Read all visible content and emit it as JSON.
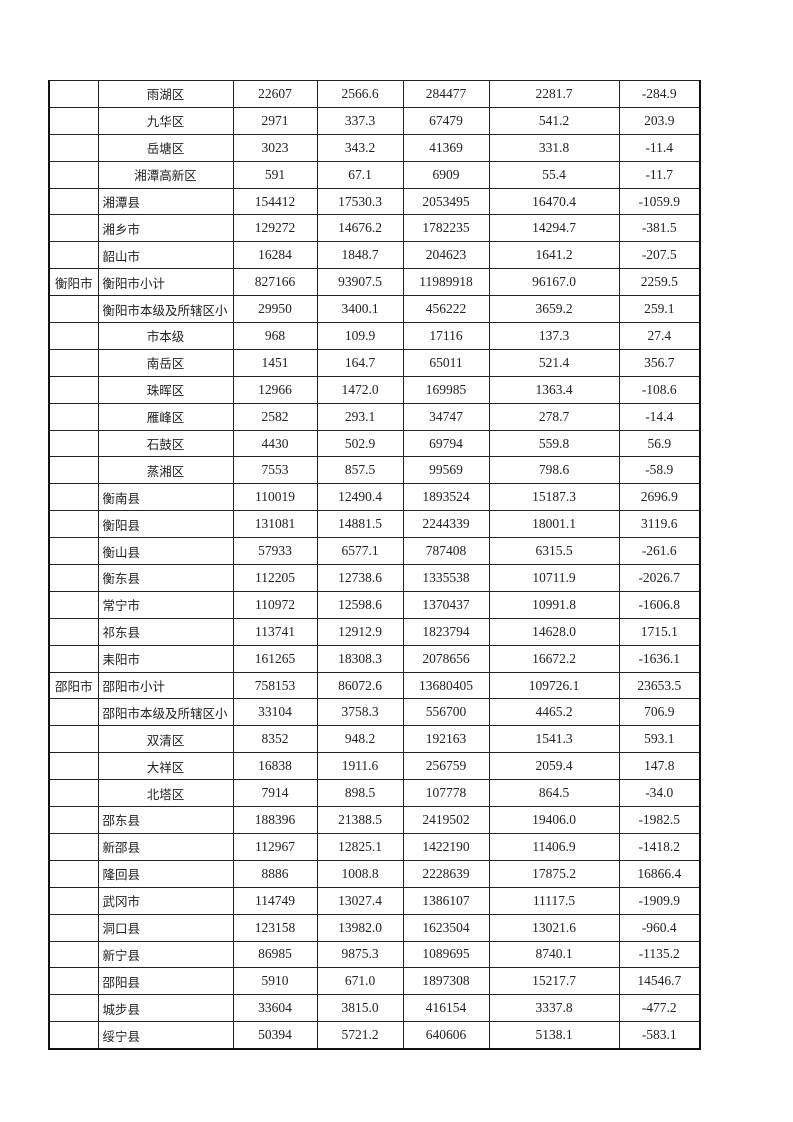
{
  "rows": [
    {
      "city": "",
      "name": "雨湖区",
      "sub": true,
      "v": [
        "22607",
        "2566.6",
        "284477",
        "2281.7",
        "-284.9"
      ]
    },
    {
      "city": "",
      "name": "九华区",
      "sub": true,
      "v": [
        "2971",
        "337.3",
        "67479",
        "541.2",
        "203.9"
      ]
    },
    {
      "city": "",
      "name": "岳塘区",
      "sub": true,
      "v": [
        "3023",
        "343.2",
        "41369",
        "331.8",
        "-11.4"
      ]
    },
    {
      "city": "",
      "name": "湘潭高新区",
      "sub": true,
      "v": [
        "591",
        "67.1",
        "6909",
        "55.4",
        "-11.7"
      ]
    },
    {
      "city": "",
      "name": "湘潭县",
      "sub": false,
      "v": [
        "154412",
        "17530.3",
        "2053495",
        "16470.4",
        "-1059.9"
      ]
    },
    {
      "city": "",
      "name": "湘乡市",
      "sub": false,
      "v": [
        "129272",
        "14676.2",
        "1782235",
        "14294.7",
        "-381.5"
      ]
    },
    {
      "city": "",
      "name": "韶山市",
      "sub": false,
      "v": [
        "16284",
        "1848.7",
        "204623",
        "1641.2",
        "-207.5"
      ]
    },
    {
      "city": "衡阳市",
      "name": "衡阳市小计",
      "sub": false,
      "v": [
        "827166",
        "93907.5",
        "11989918",
        "96167.0",
        "2259.5"
      ]
    },
    {
      "city": "",
      "name": "衡阳市本级及所辖区小",
      "sub": false,
      "v": [
        "29950",
        "3400.1",
        "456222",
        "3659.2",
        "259.1"
      ]
    },
    {
      "city": "",
      "name": "市本级",
      "sub": true,
      "v": [
        "968",
        "109.9",
        "17116",
        "137.3",
        "27.4"
      ]
    },
    {
      "city": "",
      "name": "南岳区",
      "sub": true,
      "v": [
        "1451",
        "164.7",
        "65011",
        "521.4",
        "356.7"
      ]
    },
    {
      "city": "",
      "name": "珠晖区",
      "sub": true,
      "v": [
        "12966",
        "1472.0",
        "169985",
        "1363.4",
        "-108.6"
      ]
    },
    {
      "city": "",
      "name": "雁峰区",
      "sub": true,
      "v": [
        "2582",
        "293.1",
        "34747",
        "278.7",
        "-14.4"
      ]
    },
    {
      "city": "",
      "name": "石鼓区",
      "sub": true,
      "v": [
        "4430",
        "502.9",
        "69794",
        "559.8",
        "56.9"
      ]
    },
    {
      "city": "",
      "name": "蒸湘区",
      "sub": true,
      "v": [
        "7553",
        "857.5",
        "99569",
        "798.6",
        "-58.9"
      ]
    },
    {
      "city": "",
      "name": "衡南县",
      "sub": false,
      "v": [
        "110019",
        "12490.4",
        "1893524",
        "15187.3",
        "2696.9"
      ]
    },
    {
      "city": "",
      "name": "衡阳县",
      "sub": false,
      "v": [
        "131081",
        "14881.5",
        "2244339",
        "18001.1",
        "3119.6"
      ]
    },
    {
      "city": "",
      "name": "衡山县",
      "sub": false,
      "v": [
        "57933",
        "6577.1",
        "787408",
        "6315.5",
        "-261.6"
      ]
    },
    {
      "city": "",
      "name": "衡东县",
      "sub": false,
      "v": [
        "112205",
        "12738.6",
        "1335538",
        "10711.9",
        "-2026.7"
      ]
    },
    {
      "city": "",
      "name": "常宁市",
      "sub": false,
      "v": [
        "110972",
        "12598.6",
        "1370437",
        "10991.8",
        "-1606.8"
      ]
    },
    {
      "city": "",
      "name": "祁东县",
      "sub": false,
      "v": [
        "113741",
        "12912.9",
        "1823794",
        "14628.0",
        "1715.1"
      ]
    },
    {
      "city": "",
      "name": "耒阳市",
      "sub": false,
      "v": [
        "161265",
        "18308.3",
        "2078656",
        "16672.2",
        "-1636.1"
      ]
    },
    {
      "city": "邵阳市",
      "name": "邵阳市小计",
      "sub": false,
      "v": [
        "758153",
        "86072.6",
        "13680405",
        "109726.1",
        "23653.5"
      ]
    },
    {
      "city": "",
      "name": "邵阳市本级及所辖区小",
      "sub": false,
      "v": [
        "33104",
        "3758.3",
        "556700",
        "4465.2",
        "706.9"
      ]
    },
    {
      "city": "",
      "name": "双清区",
      "sub": true,
      "v": [
        "8352",
        "948.2",
        "192163",
        "1541.3",
        "593.1"
      ]
    },
    {
      "city": "",
      "name": "大祥区",
      "sub": true,
      "v": [
        "16838",
        "1911.6",
        "256759",
        "2059.4",
        "147.8"
      ]
    },
    {
      "city": "",
      "name": "北塔区",
      "sub": true,
      "v": [
        "7914",
        "898.5",
        "107778",
        "864.5",
        "-34.0"
      ]
    },
    {
      "city": "",
      "name": "邵东县",
      "sub": false,
      "v": [
        "188396",
        "21388.5",
        "2419502",
        "19406.0",
        "-1982.5"
      ]
    },
    {
      "city": "",
      "name": "新邵县",
      "sub": false,
      "v": [
        "112967",
        "12825.1",
        "1422190",
        "11406.9",
        "-1418.2"
      ]
    },
    {
      "city": "",
      "name": "隆回县",
      "sub": false,
      "v": [
        "8886",
        "1008.8",
        "2228639",
        "17875.2",
        "16866.4"
      ]
    },
    {
      "city": "",
      "name": "武冈市",
      "sub": false,
      "v": [
        "114749",
        "13027.4",
        "1386107",
        "11117.5",
        "-1909.9"
      ]
    },
    {
      "city": "",
      "name": "洞口县",
      "sub": false,
      "v": [
        "123158",
        "13982.0",
        "1623504",
        "13021.6",
        "-960.4"
      ]
    },
    {
      "city": "",
      "name": "新宁县",
      "sub": false,
      "v": [
        "86985",
        "9875.3",
        "1089695",
        "8740.1",
        "-1135.2"
      ]
    },
    {
      "city": "",
      "name": "邵阳县",
      "sub": false,
      "v": [
        "5910",
        "671.0",
        "1897308",
        "15217.7",
        "14546.7"
      ]
    },
    {
      "city": "",
      "name": "城步县",
      "sub": false,
      "v": [
        "33604",
        "3815.0",
        "416154",
        "3337.8",
        "-477.2"
      ]
    },
    {
      "city": "",
      "name": "绥宁县",
      "sub": false,
      "v": [
        "50394",
        "5721.2",
        "640606",
        "5138.1",
        "-583.1"
      ]
    }
  ]
}
